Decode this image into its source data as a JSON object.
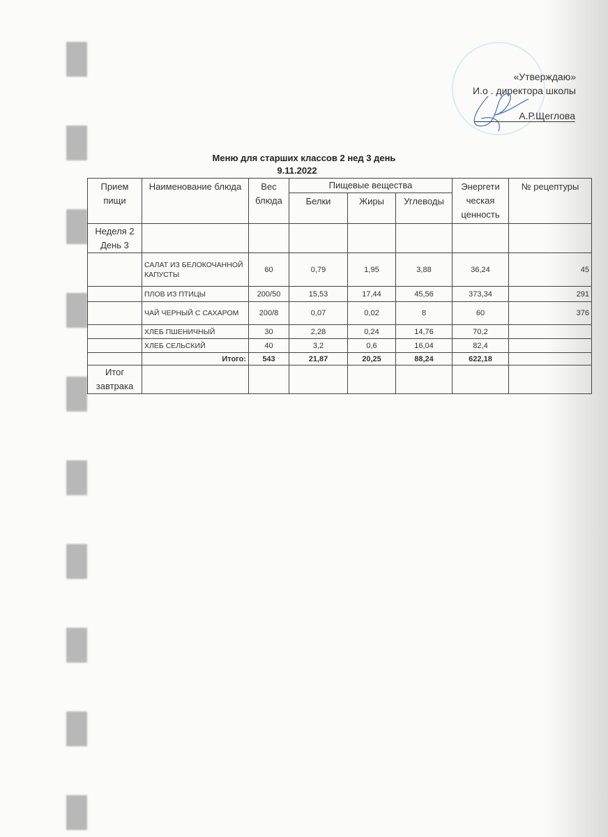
{
  "approval": {
    "line1": "«Утверждаю»",
    "line2": "И.о . директора школы",
    "signer": "А.Р.Щеглова"
  },
  "title": "Меню для старших классов  2 нед  3 день",
  "date": "9.11.2022",
  "table": {
    "headers": {
      "meal": "Прием пищи",
      "dish": "Наименование блюда",
      "weight": "Вес блюда",
      "nutrients": "Пищевые вещества",
      "protein": "Белки",
      "fat": "Жиры",
      "carbs": "Углеводы",
      "energy": "Энергети ческая ценность",
      "recipe": "№ рецептуры"
    },
    "week_day": "Неделя 2 День 3",
    "rows": [
      {
        "dish": "САЛАТ ИЗ БЕЛОКОЧАННОЙ КАПУСТЫ",
        "weight": "60",
        "protein": "0,79",
        "fat": "1,95",
        "carbs": "3,88",
        "energy": "36,24",
        "recipe": "45"
      },
      {
        "dish": "ПЛОВ ИЗ ПТИЦЫ",
        "weight": "200/50",
        "protein": "15,53",
        "fat": "17,44",
        "carbs": "45,56",
        "energy": "373,34",
        "recipe": "291"
      },
      {
        "dish": "ЧАЙ ЧЕРНЫЙ С САХАРОМ",
        "weight": "200/8",
        "protein": "0,07",
        "fat": "0,02",
        "carbs": "8",
        "energy": "60",
        "recipe": "376"
      },
      {
        "dish": "ХЛЕБ ПШЕНИЧНЫЙ",
        "weight": "30",
        "protein": "2,28",
        "fat": "0,24",
        "carbs": "14,76",
        "energy": "70,2",
        "recipe": ""
      },
      {
        "dish": "ХЛЕБ СЕЛЬСКИЙ",
        "weight": "40",
        "protein": "3,2",
        "fat": "0,6",
        "carbs": "16,04",
        "energy": "82,4",
        "recipe": ""
      }
    ],
    "total": {
      "label": "Итого:",
      "weight": "543",
      "protein": "21,87",
      "fat": "20,25",
      "carbs": "88,24",
      "energy": "622,18"
    },
    "breakfast_total": "Итог завтрака"
  }
}
